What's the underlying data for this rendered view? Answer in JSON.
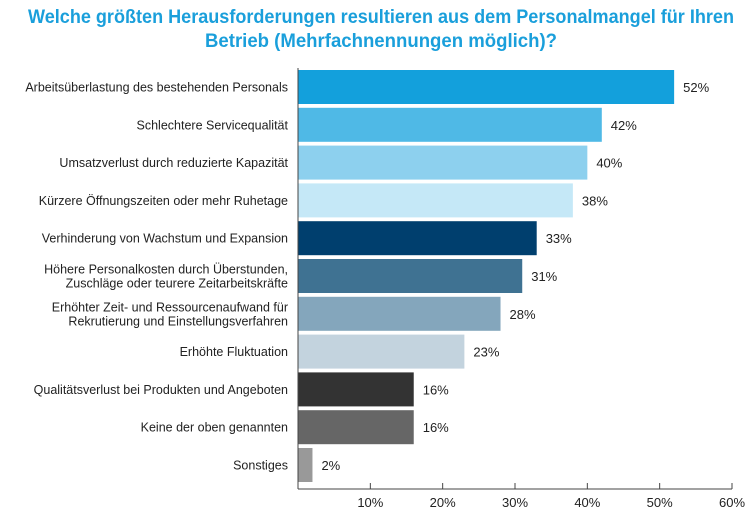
{
  "chart_data": {
    "type": "bar",
    "orientation": "horizontal",
    "title": [
      "Welche größten Herausforderungen resultieren aus dem Personalmangel für Ihren",
      "Betrieb (Mehrfachnennungen möglich)?"
    ],
    "categories": [
      [
        "Arbeitsüberlastung des bestehenden Personals"
      ],
      [
        "Schlechtere Servicequalität"
      ],
      [
        "Umsatzverlust durch reduzierte Kapazität"
      ],
      [
        "Kürzere Öffnungszeiten oder mehr Ruhetage"
      ],
      [
        "Verhinderung von Wachstum und Expansion"
      ],
      [
        "Höhere Personalkosten durch Überstunden,",
        "Zuschläge oder teurere Zeitarbeitskräfte"
      ],
      [
        "Erhöhter Zeit- und Ressourcenaufwand für",
        "Rekrutierung und Einstellungsverfahren"
      ],
      [
        "Erhöhte Fluktuation"
      ],
      [
        "Qualitätsverlust bei Produkten und Angeboten"
      ],
      [
        "Keine der oben genannten"
      ],
      [
        "Sonstiges"
      ]
    ],
    "values": [
      52,
      42,
      40,
      38,
      33,
      31,
      28,
      23,
      16,
      16,
      2
    ],
    "value_labels": [
      "52%",
      "42%",
      "40%",
      "38%",
      "33%",
      "31%",
      "28%",
      "23%",
      "16%",
      "16%",
      "2%"
    ],
    "colors": [
      "#13a0dc",
      "#4fb9e6",
      "#8dd0ee",
      "#c5e8f7",
      "#003f6e",
      "#3f7292",
      "#84a6bc",
      "#c3d3de",
      "#333333",
      "#666666",
      "#999999"
    ],
    "xlim": [
      0,
      60
    ],
    "xticks": [
      10,
      20,
      30,
      40,
      50,
      60
    ],
    "xtick_labels": [
      "10%",
      "20%",
      "30%",
      "40%",
      "50%",
      "60%"
    ],
    "grid": false,
    "title_color": "#1a9fdb"
  }
}
